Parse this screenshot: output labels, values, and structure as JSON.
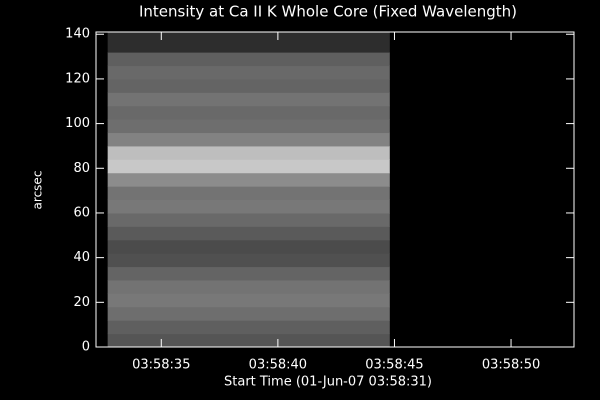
{
  "chart_data": {
    "type": "heatmap",
    "title": "Intensity at Ca II K Whole Core (Fixed Wavelength)",
    "xlabel": "Start Time (01-Jun-07 03:58:31)",
    "ylabel": "arcsec",
    "xlim": [
      32.2,
      52.7
    ],
    "xticks": [
      {
        "value": 35,
        "label": "03:58:35"
      },
      {
        "value": 40,
        "label": "03:58:40"
      },
      {
        "value": 45,
        "label": "03:58:45"
      },
      {
        "value": 50,
        "label": "03:58:50"
      }
    ],
    "ylim": [
      0,
      141
    ],
    "yticks": [
      0,
      20,
      40,
      60,
      80,
      100,
      120,
      140
    ],
    "x_extent": [
      32.7,
      44.8
    ],
    "y_bins": [
      0,
      6,
      12,
      18,
      24,
      30,
      36,
      42,
      48,
      54,
      60,
      66,
      72,
      78,
      84,
      90,
      96,
      102,
      108,
      114,
      120,
      126,
      132,
      141
    ],
    "values": [
      85,
      95,
      110,
      120,
      115,
      100,
      80,
      75,
      90,
      105,
      120,
      115,
      140,
      200,
      190,
      130,
      110,
      105,
      115,
      100,
      105,
      95,
      45
    ],
    "background": "#000000",
    "foreground": "#ffffff"
  }
}
